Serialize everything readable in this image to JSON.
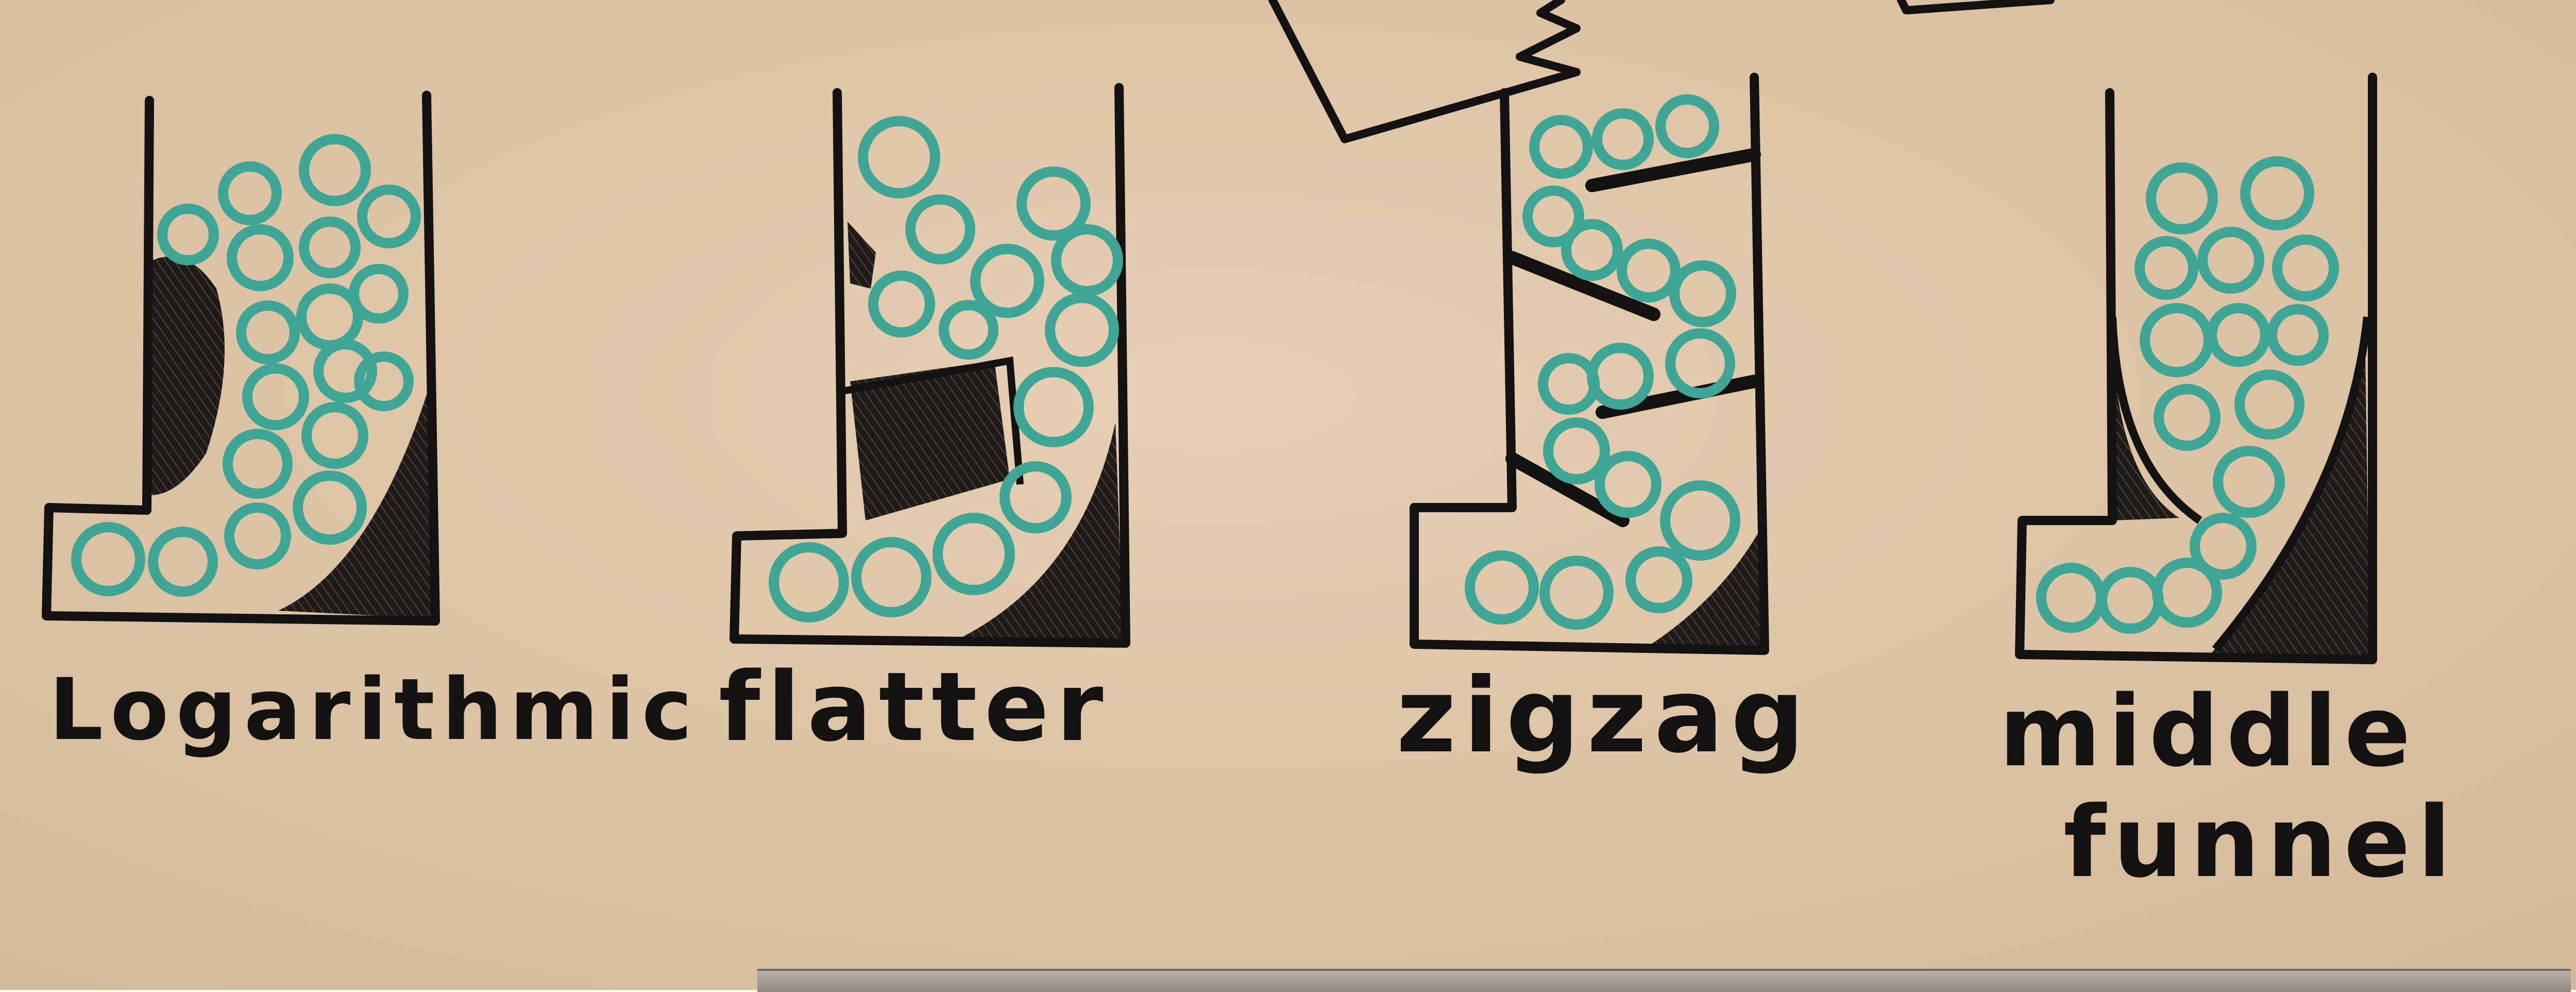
{
  "labels": {
    "logarithmic": "Logarithmic",
    "flatter": "flatter",
    "zigzag": "zigzag",
    "middle_line1": "middle",
    "middle_line2": "funnel"
  },
  "colors": {
    "board": "#dcc2a4",
    "ink": "#141210",
    "balls": "#3fa595"
  }
}
